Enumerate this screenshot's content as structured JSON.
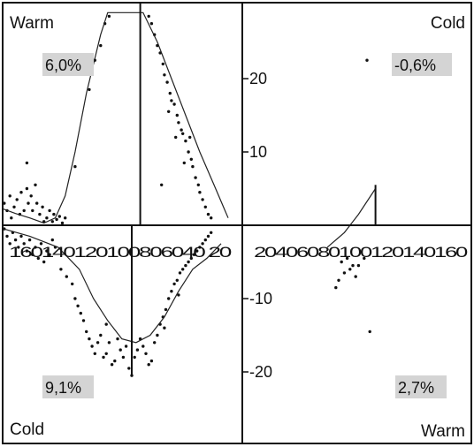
{
  "chart_data": {
    "type": "scatter",
    "title": "",
    "xlabel": "",
    "ylabel": "",
    "y_axis_ticks": [
      "20",
      "10",
      "-10",
      "-20"
    ],
    "y_range": [
      -24,
      28
    ],
    "x_ticks_left": [
      "160",
      "140",
      "120",
      "100",
      "80",
      "60",
      "40",
      "20"
    ],
    "x_ticks_right": [
      "20",
      "40",
      "60",
      "80",
      "100",
      "120",
      "140",
      "160"
    ],
    "x_ticks_left_text": "160140120100806040 20",
    "x_ticks_right_text": "20406080100120140160",
    "x_range": [
      -170,
      170
    ],
    "quadrants": [
      {
        "name": "top-left",
        "corner_label": "Warm",
        "percent_label": "6,0%"
      },
      {
        "name": "top-right",
        "corner_label": "Cold",
        "percent_label": "-0,6%"
      },
      {
        "name": "bottom-left",
        "corner_label": "Cold",
        "percent_label": "9,1%"
      },
      {
        "name": "bottom-right",
        "corner_label": "Warm",
        "percent_label": "2,7%"
      }
    ],
    "markers": [
      {
        "quadrant": "top-left",
        "x": -72
      },
      {
        "quadrant": "bottom-left",
        "x": -78
      },
      {
        "quadrant": "top-right",
        "x": 94
      }
    ],
    "fit_lines": [
      {
        "quadrant": "top-left",
        "points": [
          [
            -170,
            2.2
          ],
          [
            -160,
            1.6
          ],
          [
            -150,
            1.0
          ],
          [
            -140,
            0.3
          ],
          [
            -132,
            1.0
          ],
          [
            -125,
            4
          ],
          [
            -118,
            10
          ],
          [
            -110,
            18
          ],
          [
            -100,
            26
          ],
          [
            -95,
            29
          ],
          [
            -70,
            29
          ],
          [
            -60,
            25
          ],
          [
            -50,
            20
          ],
          [
            -40,
            15
          ],
          [
            -30,
            10
          ],
          [
            -20,
            5.5
          ],
          [
            -10,
            1
          ]
        ]
      },
      {
        "quadrant": "bottom-left",
        "points": [
          [
            -170,
            -0.5
          ],
          [
            -150,
            -1.5
          ],
          [
            -130,
            -3
          ],
          [
            -115,
            -6
          ],
          [
            -105,
            -10
          ],
          [
            -95,
            -13
          ],
          [
            -85,
            -15.5
          ],
          [
            -75,
            -16
          ],
          [
            -65,
            -15
          ],
          [
            -55,
            -12.5
          ],
          [
            -45,
            -9
          ],
          [
            -35,
            -6
          ],
          [
            -25,
            -4.5
          ],
          [
            -15,
            -2.5
          ]
        ]
      },
      {
        "quadrant": "top-right",
        "points": [
          [
            60,
            -3
          ],
          [
            72,
            -1
          ],
          [
            82,
            1.5
          ],
          [
            94,
            5
          ]
        ]
      }
    ],
    "points": [
      [
        -168,
        3.0
      ],
      [
        -166,
        2.0
      ],
      [
        -164,
        4.0
      ],
      [
        -163,
        1.0
      ],
      [
        -161,
        2.5
      ],
      [
        -159,
        3.5
      ],
      [
        -157,
        1.5
      ],
      [
        -156,
        4.5
      ],
      [
        -154,
        2.0
      ],
      [
        -152,
        5.0
      ],
      [
        -151,
        3.0
      ],
      [
        -149,
        4.0
      ],
      [
        -148,
        2.0
      ],
      [
        -146,
        5.5
      ],
      [
        -145,
        3.0
      ],
      [
        -143,
        1.5
      ],
      [
        -141,
        2.5
      ],
      [
        -140,
        0.5
      ],
      [
        -138,
        1.0
      ],
      [
        -136,
        2.0
      ],
      [
        -134,
        0.5
      ],
      [
        -133,
        1.5
      ],
      [
        -131,
        0.8
      ],
      [
        -129,
        1.2
      ],
      [
        -127,
        0.3
      ],
      [
        -125,
        1.0
      ],
      [
        -152,
        8.5
      ],
      [
        -118,
        8.0
      ],
      [
        -108,
        18.5
      ],
      [
        -104,
        22.5
      ],
      [
        -100,
        24.5
      ],
      [
        -97,
        27.5
      ],
      [
        -94,
        28.5
      ],
      [
        -66,
        28.5
      ],
      [
        -64,
        27.5
      ],
      [
        -62,
        26.0
      ],
      [
        -60,
        24.5
      ],
      [
        -58,
        23.5
      ],
      [
        -56,
        22.0
      ],
      [
        -55,
        20.5
      ],
      [
        -53,
        19.5
      ],
      [
        -51,
        18.0
      ],
      [
        -50,
        17.0
      ],
      [
        -48,
        16.5
      ],
      [
        -46,
        15.0
      ],
      [
        -45,
        14.0
      ],
      [
        -43,
        13.0
      ],
      [
        -42,
        12.5
      ],
      [
        -40,
        11.5
      ],
      [
        -38,
        10.0
      ],
      [
        -36,
        9.0
      ],
      [
        -35,
        8.0
      ],
      [
        -33,
        6.5
      ],
      [
        -31,
        5.5
      ],
      [
        -30,
        4.5
      ],
      [
        -28,
        3.5
      ],
      [
        -26,
        2.5
      ],
      [
        -24,
        1.5
      ],
      [
        -22,
        1.0
      ],
      [
        -52,
        15.5
      ],
      [
        -47,
        12.0
      ],
      [
        -41,
        8.5
      ],
      [
        -37,
        12.0
      ],
      [
        -57,
        5.5
      ],
      [
        -168,
        -0.5
      ],
      [
        -166,
        -1.5
      ],
      [
        -164,
        -2.5
      ],
      [
        -162,
        -1.0
      ],
      [
        -160,
        -2.0
      ],
      [
        -158,
        -3.0
      ],
      [
        -156,
        -1.5
      ],
      [
        -154,
        -2.5
      ],
      [
        -152,
        -3.5
      ],
      [
        -150,
        -2.0
      ],
      [
        -148,
        -4.0
      ],
      [
        -146,
        -3.0
      ],
      [
        -144,
        -4.5
      ],
      [
        -142,
        -2.5
      ],
      [
        -140,
        -5.0
      ],
      [
        -138,
        -3.5
      ],
      [
        -136,
        -4.0
      ],
      [
        -134,
        -2.0
      ],
      [
        -132,
        -3.0
      ],
      [
        -128,
        -6.0
      ],
      [
        -124,
        -7.0
      ],
      [
        -120,
        -8.0
      ],
      [
        -118,
        -10.0
      ],
      [
        -116,
        -11.0
      ],
      [
        -114,
        -12.0
      ],
      [
        -112,
        -13.0
      ],
      [
        -110,
        -14.5
      ],
      [
        -108,
        -15.5
      ],
      [
        -106,
        -16.5
      ],
      [
        -104,
        -17.5
      ],
      [
        -102,
        -16.0
      ],
      [
        -100,
        -15.0
      ],
      [
        -98,
        -18.0
      ],
      [
        -96,
        -17.5
      ],
      [
        -94,
        -16.0
      ],
      [
        -92,
        -19.0
      ],
      [
        -90,
        -18.5
      ],
      [
        -88,
        -15.5
      ],
      [
        -86,
        -17.0
      ],
      [
        -84,
        -18.0
      ],
      [
        -82,
        -16.5
      ],
      [
        -80,
        -19.5
      ],
      [
        -78,
        -20.5
      ],
      [
        -76,
        -18.0
      ],
      [
        -74,
        -17.0
      ],
      [
        -72,
        -15.5
      ],
      [
        -70,
        -16.5
      ],
      [
        -68,
        -17.5
      ],
      [
        -66,
        -19.0
      ],
      [
        -64,
        -18.5
      ],
      [
        -62,
        -16.0
      ],
      [
        -60,
        -15.0
      ],
      [
        -58,
        -13.5
      ],
      [
        -56,
        -12.5
      ],
      [
        -54,
        -11.5
      ],
      [
        -52,
        -10.0
      ],
      [
        -50,
        -9.0
      ],
      [
        -48,
        -8.0
      ],
      [
        -46,
        -7.5
      ],
      [
        -44,
        -6.5
      ],
      [
        -42,
        -6.0
      ],
      [
        -40,
        -5.5
      ],
      [
        -38,
        -5.0
      ],
      [
        -36,
        -4.5
      ],
      [
        -34,
        -4.0
      ],
      [
        -32,
        -3.5
      ],
      [
        -30,
        -3.0
      ],
      [
        -28,
        -2.5
      ],
      [
        -26,
        -2.0
      ],
      [
        -24,
        -1.5
      ],
      [
        -22,
        -1.0
      ],
      [
        -45,
        -9.5
      ],
      [
        -55,
        -14.0
      ],
      [
        -96,
        -13.5
      ],
      [
        70,
        -5.0
      ],
      [
        72,
        -6.5
      ],
      [
        74,
        -4.5
      ],
      [
        76,
        -6.0
      ],
      [
        78,
        -5.5
      ],
      [
        80,
        -7.0
      ],
      [
        82,
        -5.5
      ],
      [
        66,
        -8.5
      ],
      [
        68,
        -7.5
      ],
      [
        86,
        -4.5
      ],
      [
        90,
        -14.5
      ],
      [
        88,
        22.5
      ]
    ]
  }
}
